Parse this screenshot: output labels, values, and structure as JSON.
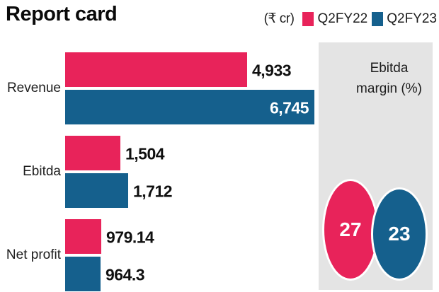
{
  "title": "Report card",
  "legend": {
    "unit_label": "(₹ cr)",
    "items": [
      {
        "label": "Q2FY22",
        "color": "#e8235a"
      },
      {
        "label": "Q2FY23",
        "color": "#15608d"
      }
    ]
  },
  "chart_data": {
    "type": "bar",
    "orientation": "horizontal",
    "title": "Report card",
    "unit": "₹ cr",
    "categories": [
      "Revenue",
      "Ebitda",
      "Net profit"
    ],
    "series": [
      {
        "name": "Q2FY22",
        "color": "#e8235a",
        "values": [
          4933,
          1504,
          979.14
        ],
        "display_values": [
          "4,933",
          "1,504",
          "979.14"
        ]
      },
      {
        "name": "Q2FY23",
        "color": "#15608d",
        "values": [
          6745,
          1712,
          964.3
        ],
        "display_values": [
          "6,745",
          "1,712",
          "964.3"
        ]
      }
    ],
    "xlim": [
      0,
      6745
    ],
    "grid": false,
    "legend_position": "top-right",
    "value_labels_inside": [
      [
        false,
        false,
        false
      ],
      [
        true,
        false,
        false
      ]
    ]
  },
  "side_panel": {
    "title": "Ebitda margin (%)",
    "background": "#e4e4e4",
    "bubbles": [
      {
        "label": "27",
        "series": "Q2FY22",
        "color": "#e8235a"
      },
      {
        "label": "23",
        "series": "Q2FY23",
        "color": "#15608d"
      }
    ]
  }
}
